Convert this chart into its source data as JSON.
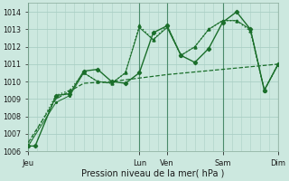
{
  "xlabel": "Pression niveau de la mer( hPa )",
  "bg_color": "#cce8df",
  "grid_color": "#aacfc5",
  "line_color": "#1a6e2a",
  "ylim": [
    1006,
    1014.5
  ],
  "yticks": [
    1006,
    1007,
    1008,
    1009,
    1010,
    1011,
    1012,
    1013,
    1014
  ],
  "xlim": [
    0,
    108
  ],
  "day_labels": [
    "Jeu",
    "Lun",
    "Ven",
    "Sam",
    "Dim"
  ],
  "day_positions": [
    0,
    48,
    60,
    84,
    108
  ],
  "xtick_minor_step": 4,
  "series1_x": [
    0,
    3,
    12,
    18,
    24,
    30,
    36,
    42,
    48,
    54,
    60,
    66,
    72,
    78,
    84,
    90,
    96,
    102,
    108
  ],
  "series1_y": [
    1006.3,
    1006.3,
    1009.2,
    1009.3,
    1010.6,
    1010.7,
    1010.0,
    1009.9,
    1010.5,
    1012.8,
    1013.2,
    1011.5,
    1011.1,
    1011.9,
    1013.4,
    1014.0,
    1013.0,
    1009.5,
    1011.0
  ],
  "series2_x": [
    0,
    12,
    18,
    24,
    30,
    36,
    42,
    48,
    54,
    60,
    66,
    72,
    78,
    84,
    90,
    96,
    102,
    108
  ],
  "series2_y": [
    1006.3,
    1009.2,
    1009.5,
    1010.5,
    1010.0,
    1009.9,
    1010.5,
    1013.2,
    1012.4,
    1013.2,
    1011.5,
    1012.0,
    1013.0,
    1013.5,
    1013.5,
    1012.9,
    1009.5,
    1011.0
  ],
  "series3_x": [
    0,
    12,
    18,
    24,
    30,
    36,
    42,
    48,
    54,
    60,
    66,
    72,
    78,
    84,
    90,
    96,
    102,
    108
  ],
  "series3_y": [
    1006.3,
    1008.8,
    1009.2,
    1010.5,
    1010.0,
    1009.9,
    1010.5,
    1013.1,
    1012.4,
    1013.1,
    1011.5,
    1012.0,
    1013.0,
    1013.5,
    1013.5,
    1013.0,
    1009.5,
    1011.0
  ],
  "series4_x": [
    0,
    12,
    24,
    36,
    48,
    60,
    72,
    84,
    96,
    108
  ],
  "series4_y": [
    1006.5,
    1009.0,
    1009.9,
    1010.0,
    1010.2,
    1010.4,
    1010.55,
    1010.7,
    1010.85,
    1011.0
  ]
}
